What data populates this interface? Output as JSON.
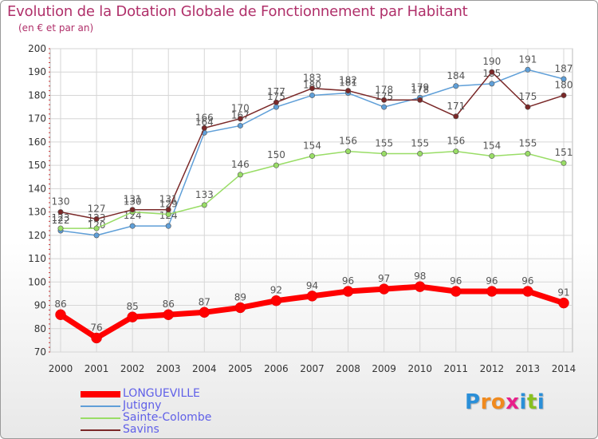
{
  "title": "Evolution de la Dotation Globale de Fonctionnement par Habitant",
  "subtitle": "(en € et par an)",
  "chart_data": {
    "type": "line",
    "title": "Evolution de la Dotation Globale de Fonctionnement par Habitant",
    "ylabel": "(en € et par an)",
    "xlabel": "",
    "categories": [
      "2000",
      "2001",
      "2002",
      "2003",
      "2004",
      "2005",
      "2006",
      "2007",
      "2008",
      "2009",
      "2010",
      "2011",
      "2012",
      "2013",
      "2014"
    ],
    "ylim": [
      70,
      200
    ],
    "yticks": [
      70,
      80,
      90,
      100,
      110,
      120,
      130,
      140,
      150,
      160,
      170,
      180,
      190,
      200
    ],
    "grid": true,
    "legend_position": "bottom-left",
    "series": [
      {
        "name": "LONGUEVILLE",
        "color": "#ff0000",
        "emphasis": true,
        "values": [
          86,
          76,
          85,
          86,
          87,
          89,
          92,
          94,
          96,
          97,
          98,
          96,
          96,
          96,
          91
        ],
        "labels": [
          "86",
          "76",
          "85",
          "86",
          "87",
          "89",
          "92",
          "94",
          "96",
          "97",
          "98",
          "96",
          "96",
          "96",
          "91"
        ]
      },
      {
        "name": "Jutigny",
        "color": "#5f9fd8",
        "emphasis": false,
        "values": [
          122,
          120,
          124,
          124,
          164,
          167,
          175,
          180,
          181,
          175,
          179,
          184,
          185,
          191,
          187
        ],
        "labels": [
          "122",
          "120",
          "124",
          "124",
          "164",
          "167",
          "175",
          "180",
          "181",
          "175",
          "179",
          "184",
          "185",
          "191",
          "187"
        ]
      },
      {
        "name": "Sainte-Colombe",
        "color": "#99dd66",
        "emphasis": false,
        "values": [
          123,
          123,
          130,
          129,
          133,
          146,
          150,
          154,
          156,
          155,
          155,
          156,
          154,
          155,
          151
        ],
        "labels": [
          "123",
          "123",
          "130",
          "129",
          "133",
          "146",
          "150",
          "154",
          "156",
          "155",
          "155",
          "156",
          "154",
          "155",
          "151"
        ]
      },
      {
        "name": "Savins",
        "color": "#7a2828",
        "emphasis": false,
        "values": [
          130,
          127,
          131,
          131,
          166,
          170,
          177,
          183,
          182,
          178,
          178,
          171,
          190,
          175,
          180
        ],
        "labels": [
          "130",
          "127",
          "131",
          "131",
          "166",
          "170",
          "177",
          "183",
          "182",
          "178",
          "178",
          "171",
          "190",
          "175",
          "180"
        ]
      }
    ]
  },
  "logo": {
    "letters": [
      "P",
      "r",
      "o",
      "x",
      "i",
      "t",
      "i"
    ],
    "colors": [
      "#2a8fd8",
      "#f08a1e",
      "#f08a1e",
      "#e8208a",
      "#2a8fd8",
      "#88c020",
      "#2a8fd8"
    ]
  }
}
